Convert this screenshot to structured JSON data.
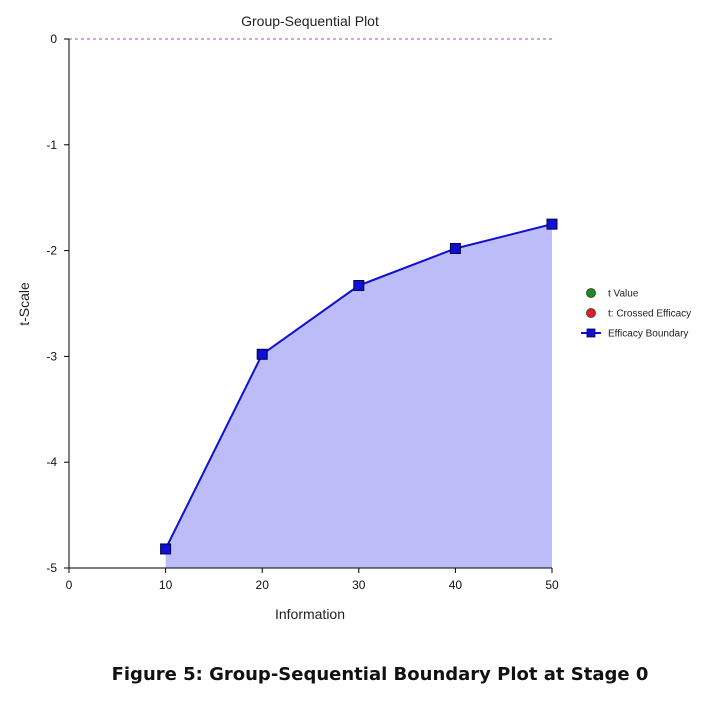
{
  "caption": "Figure 5: Group-Sequential Boundary Plot at Stage 0",
  "chart_data": {
    "type": "line",
    "title": "Group-Sequential Plot",
    "xlabel": "Information",
    "ylabel": "t-Scale",
    "xlim": [
      0,
      50
    ],
    "ylim": [
      -5,
      0
    ],
    "x_ticks": [
      0,
      10,
      20,
      30,
      40,
      50
    ],
    "y_ticks": [
      0,
      -1,
      -2,
      -3,
      -4,
      -5
    ],
    "reference_line": {
      "y": 0,
      "style": "dashed",
      "color": "#c040c0"
    },
    "legend_position": "right",
    "legend": [
      {
        "label": "t Value",
        "marker": "circle",
        "color": "#1f8a1f"
      },
      {
        "label": "t: Crossed Efficacy",
        "marker": "circle",
        "color": "#e02020"
      },
      {
        "label": "Efficacy Boundary",
        "marker": "square-line",
        "color": "#1010d0"
      }
    ],
    "series": [
      {
        "name": "Efficacy Boundary",
        "color": "#1010d0",
        "fill_color": "#bcbcf8",
        "x": [
          10,
          20,
          30,
          40,
          50
        ],
        "y": [
          -4.82,
          -2.98,
          -2.33,
          -1.98,
          -1.75
        ]
      }
    ]
  }
}
